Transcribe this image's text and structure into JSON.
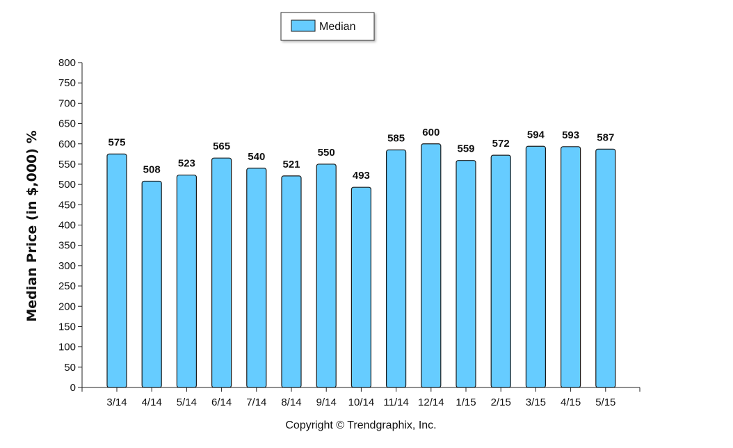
{
  "chart_data": {
    "type": "bar",
    "categories": [
      "3/14",
      "4/14",
      "5/14",
      "6/14",
      "7/14",
      "8/14",
      "9/14",
      "10/14",
      "11/14",
      "12/14",
      "1/15",
      "2/15",
      "3/15",
      "4/15",
      "5/15"
    ],
    "series": [
      {
        "name": "Median",
        "values": [
          575,
          508,
          523,
          565,
          540,
          521,
          550,
          493,
          585,
          600,
          559,
          572,
          594,
          593,
          587
        ]
      }
    ],
    "ylabel": "Median Price (in $,000) %",
    "xlabel": "",
    "ylim": [
      0,
      800
    ],
    "yticks": [
      0,
      50,
      100,
      150,
      200,
      250,
      300,
      350,
      400,
      450,
      500,
      550,
      600,
      650,
      700,
      750,
      800
    ],
    "grid": false,
    "legend_position": "top-center",
    "colors": {
      "bar_fill": "#66ccff",
      "bar_stroke": "#1a1a1a"
    }
  },
  "footer": {
    "copyright": "Copyright © Trendgraphix, Inc."
  }
}
